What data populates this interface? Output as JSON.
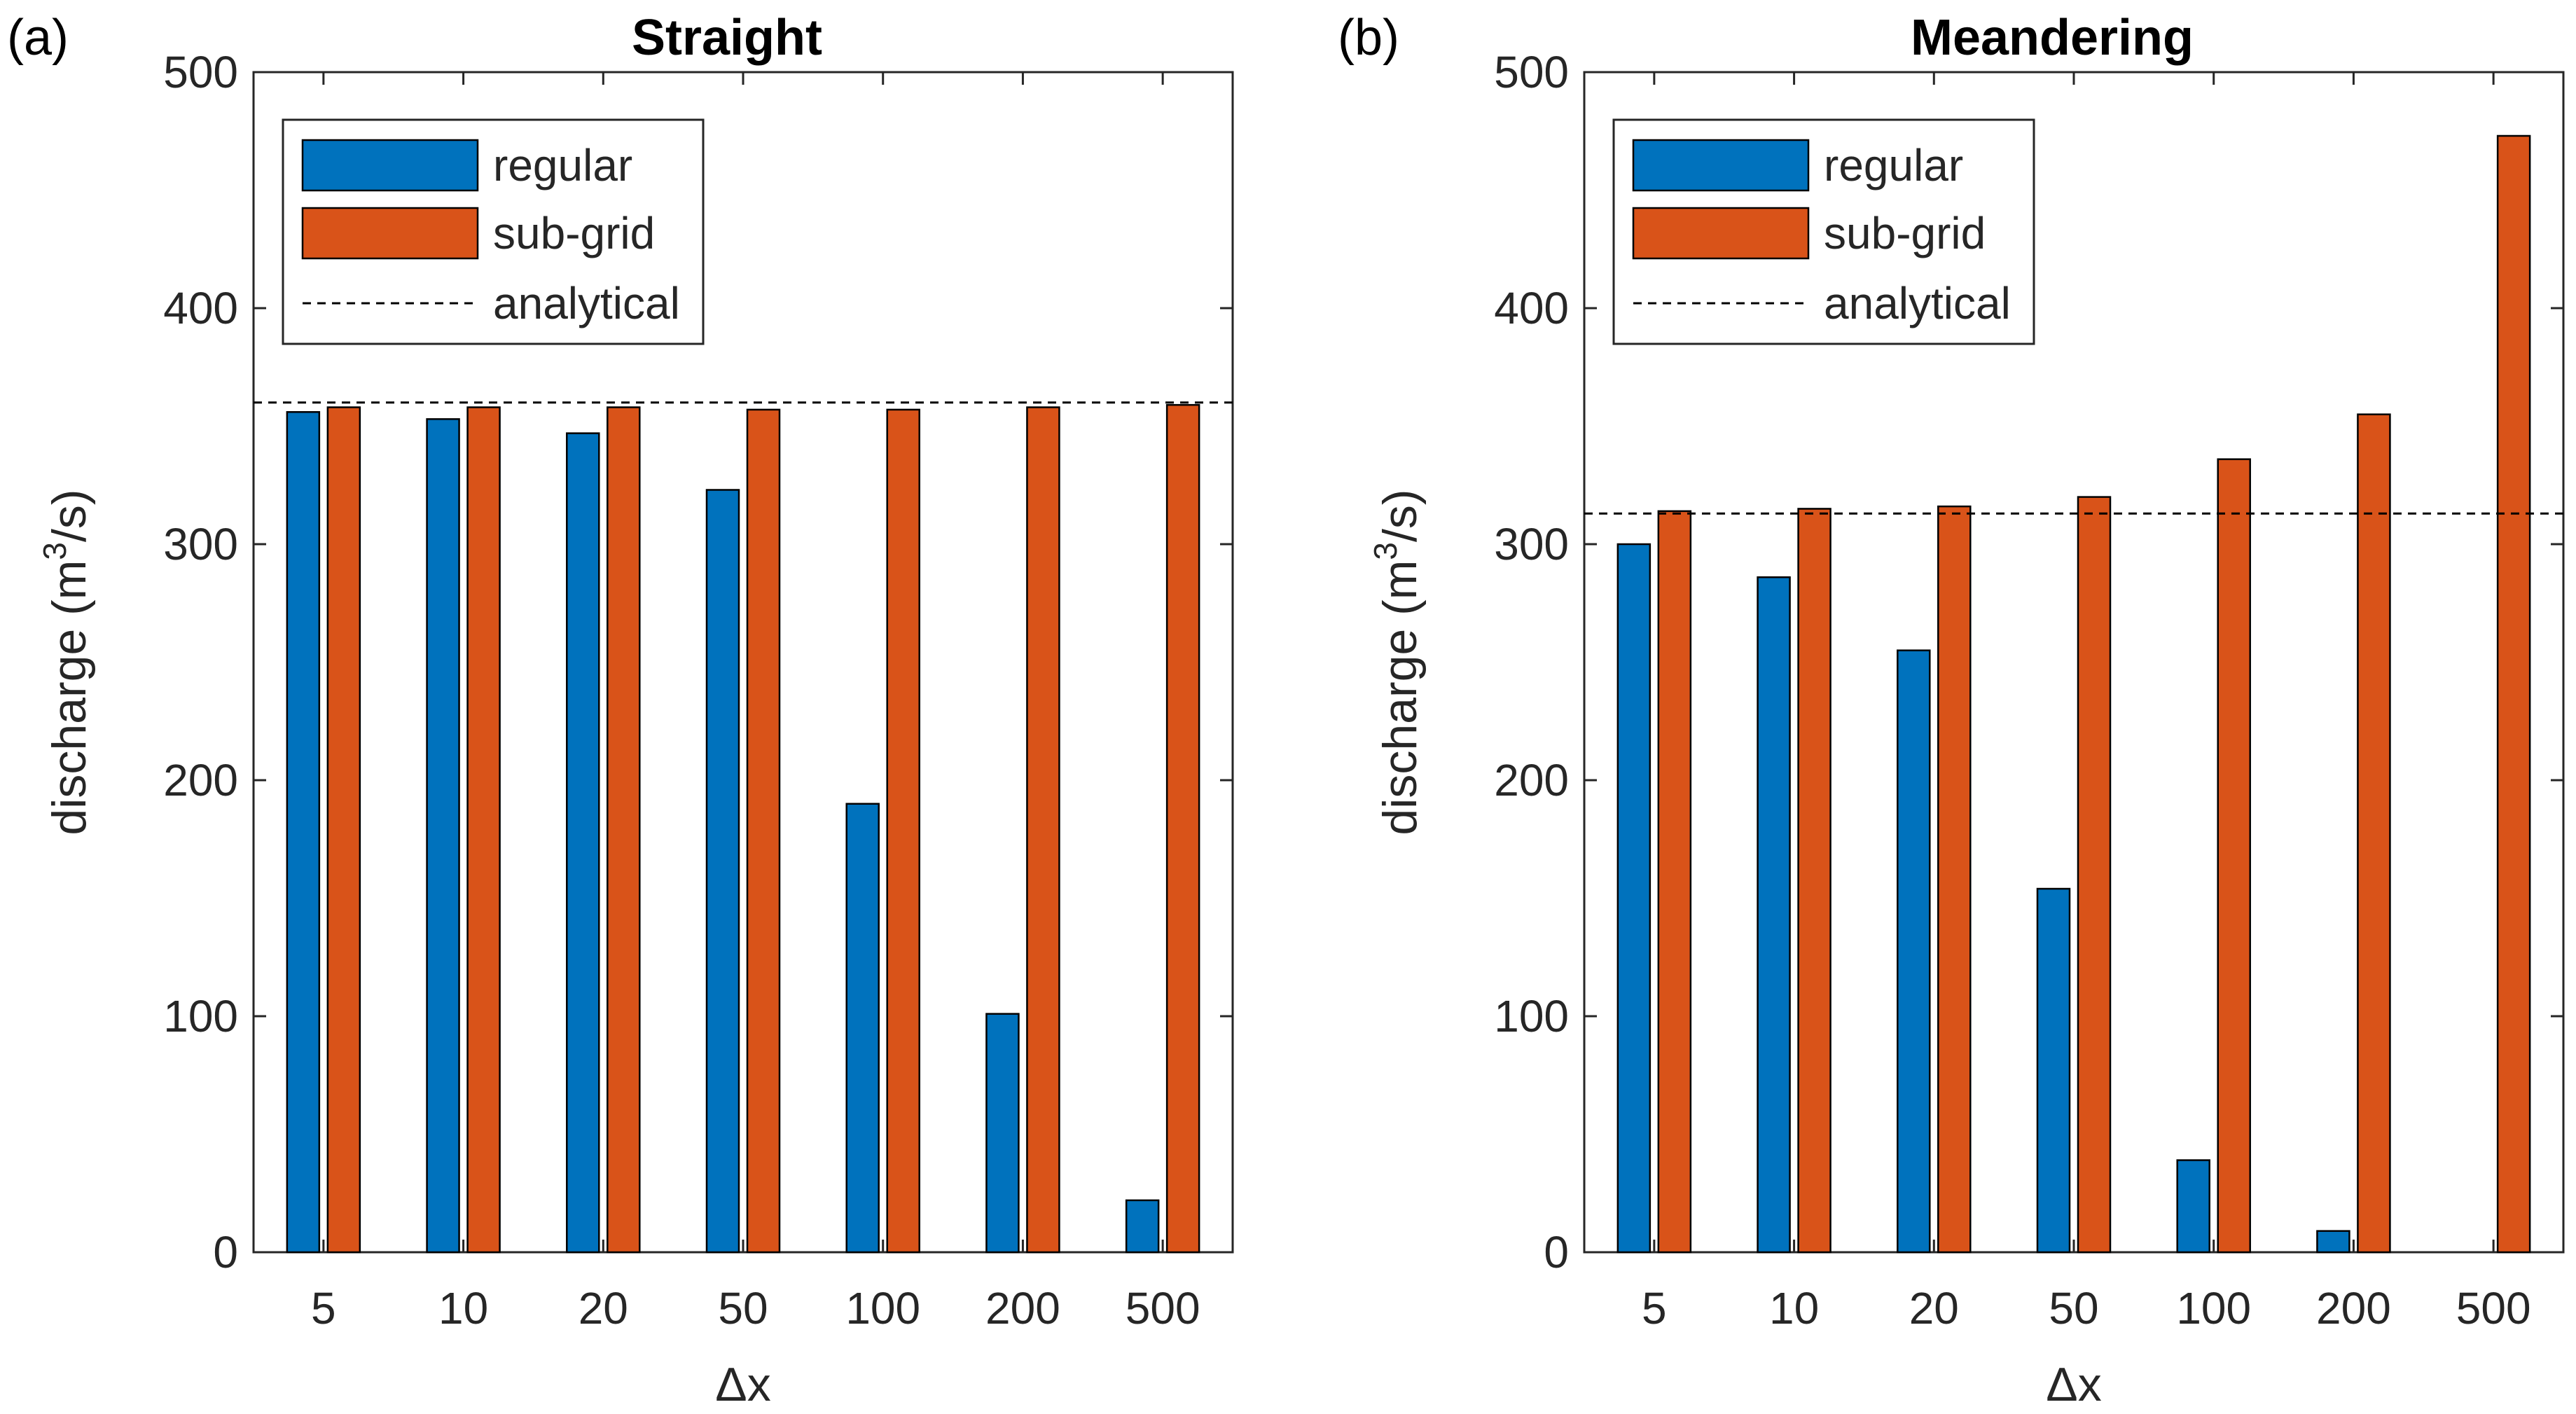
{
  "chart_data": [
    {
      "type": "bar",
      "panel": "(a)",
      "title": "Straight",
      "xlabel": "Δx",
      "ylabel": "discharge (m3/s)",
      "ylabel_parts": {
        "before": "discharge (m",
        "sup": "3",
        "after": "/s)"
      },
      "categories": [
        "5",
        "10",
        "20",
        "50",
        "100",
        "200",
        "500"
      ],
      "series": [
        {
          "name": "regular",
          "color": "#0072BD",
          "values": [
            356,
            353,
            347,
            323,
            190,
            101,
            22
          ]
        },
        {
          "name": "sub-grid",
          "color": "#D95319",
          "values": [
            358,
            358,
            358,
            357,
            357,
            358,
            359
          ]
        }
      ],
      "reference_line": {
        "name": "analytical",
        "value": 360,
        "style": "dashed",
        "color": "#000000"
      },
      "ylim": [
        0,
        500
      ],
      "yticks": [
        0,
        100,
        200,
        300,
        400,
        500
      ],
      "legend_position": "top-left",
      "grid": false
    },
    {
      "type": "bar",
      "panel": "(b)",
      "title": "Meandering",
      "xlabel": "Δx",
      "ylabel": "discharge (m3/s)",
      "ylabel_parts": {
        "before": "discharge (m",
        "sup": "3",
        "after": "/s)"
      },
      "categories": [
        "5",
        "10",
        "20",
        "50",
        "100",
        "200",
        "500"
      ],
      "series": [
        {
          "name": "regular",
          "color": "#0072BD",
          "values": [
            300,
            286,
            255,
            154,
            39,
            9,
            0
          ]
        },
        {
          "name": "sub-grid",
          "color": "#D95319",
          "values": [
            314,
            315,
            316,
            320,
            336,
            355,
            473
          ]
        }
      ],
      "reference_line": {
        "name": "analytical",
        "value": 313,
        "style": "dashed",
        "color": "#000000"
      },
      "ylim": [
        0,
        500
      ],
      "yticks": [
        0,
        100,
        200,
        300,
        400,
        500
      ],
      "legend_position": "top-left",
      "grid": false
    }
  ]
}
